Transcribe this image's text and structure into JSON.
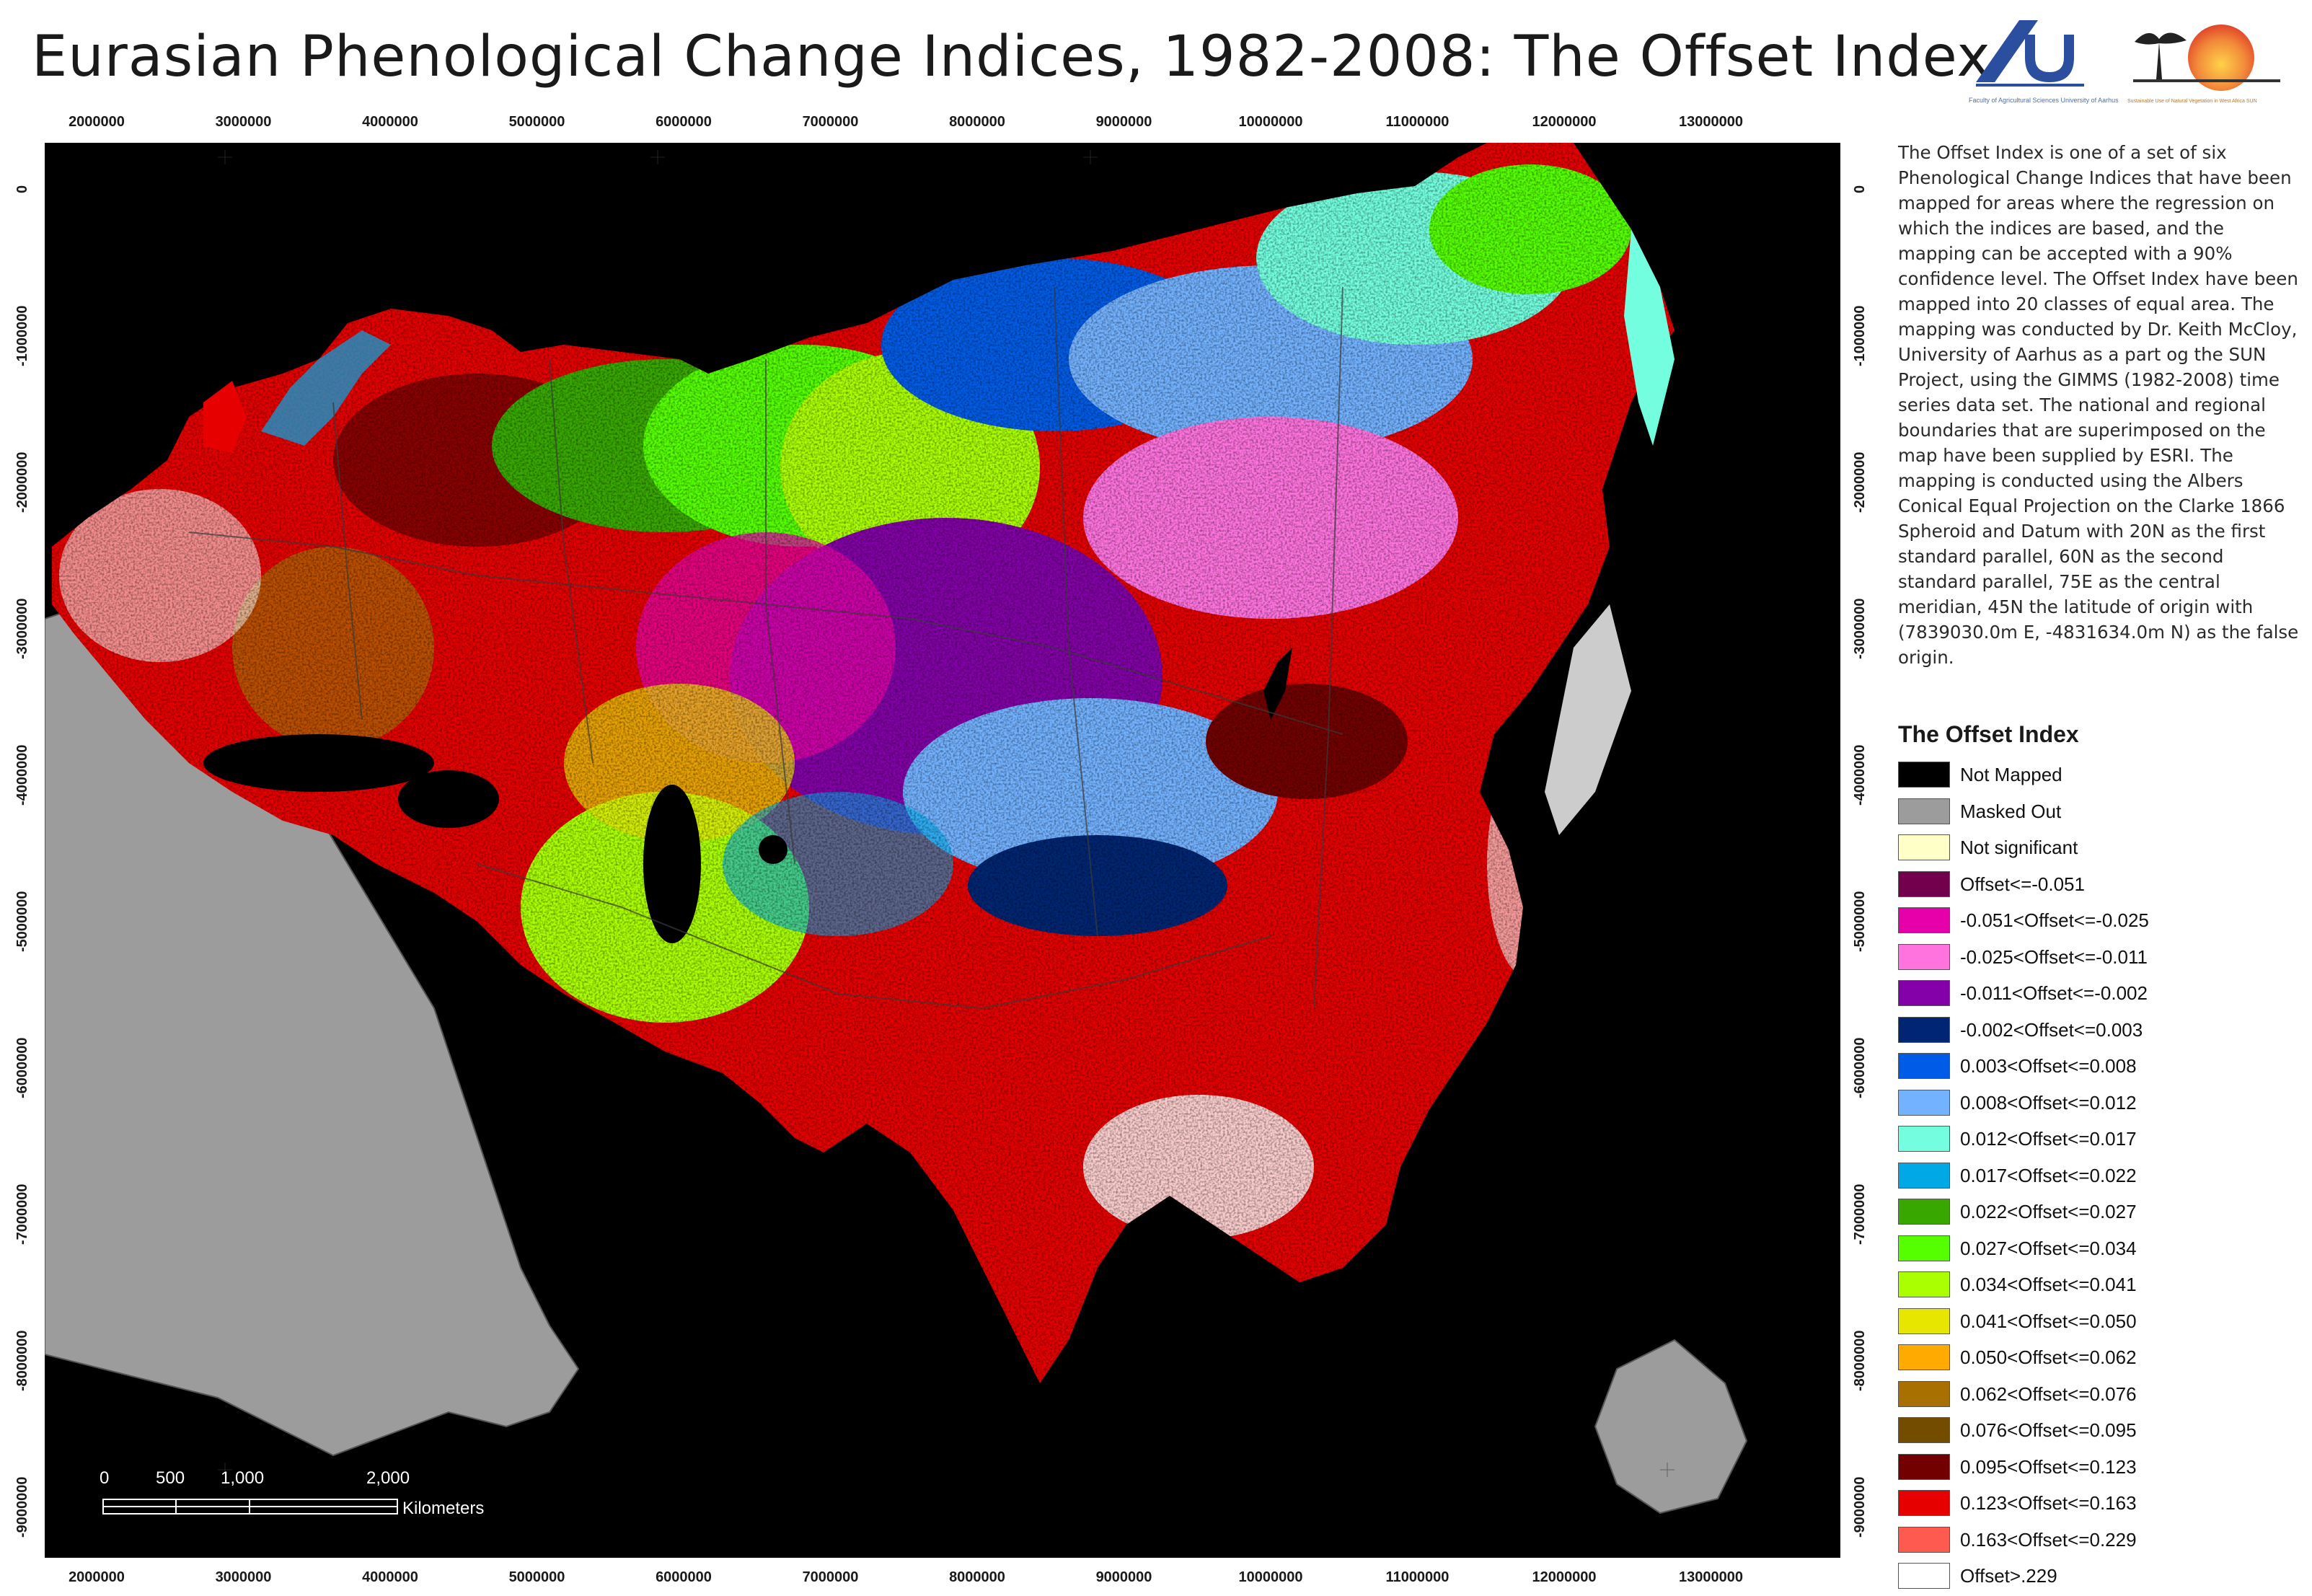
{
  "title": "Eurasian Phenological Change Indices, 1982-2008: The Offset Index",
  "logos": [
    {
      "icon": "aarhus-university-logo",
      "text": "Faculty of Agricultural Sciences University of Aarhus",
      "color": "#2b4f9e"
    },
    {
      "icon": "sun-project-logo",
      "text": "Sustainable Use of Natural Vegetation in West Africa SUN",
      "color": "#e8623a"
    }
  ],
  "x_ticks": [
    "2000000",
    "3000000",
    "4000000",
    "5000000",
    "6000000",
    "7000000",
    "8000000",
    "9000000",
    "10000000",
    "11000000",
    "12000000",
    "13000000"
  ],
  "y_ticks": [
    "0",
    "-1000000",
    "-2000000",
    "-3000000",
    "-4000000",
    "-5000000",
    "-6000000",
    "-7000000",
    "-8000000",
    "-9000000"
  ],
  "scale_bar": {
    "labels": [
      "0",
      "500",
      "1,000",
      "2,000"
    ],
    "unit": "Kilometers"
  },
  "description": "The Offset Index is one of a set of six Phenological Change Indices that have been mapped for areas where the regression on which the indices are based, and the mapping can be accepted with a 90% confidence level. The Offset Index have been mapped into 20 classes of equal area. The mapping was conducted by Dr. Keith McCloy, University of Aarhus as a part og the SUN Project, using the GIMMS (1982-2008) time series data set. The national and regional boundaries that are superimposed on the map have been supplied by ESRI. The mapping is conducted using the Albers Conical Equal Projection on the Clarke 1866 Spheroid and Datum with 20N as the first standard parallel, 60N as the second standard parallel, 75E as the central meridian, 45N the latitude of origin with (7839030.0m E, -4831634.0m N) as the false origin.",
  "legend": {
    "title": "The Offset Index",
    "items": [
      {
        "label": "Not Mapped",
        "color": "#000000"
      },
      {
        "label": "Masked Out",
        "color": "#9c9c9c"
      },
      {
        "label": "Not significant",
        "color": "#ffffc8"
      },
      {
        "label": "Offset<=-0.051",
        "color": "#73004c"
      },
      {
        "label": "-0.051<Offset<=-0.025",
        "color": "#e600a9"
      },
      {
        "label": "-0.025<Offset<=-0.011",
        "color": "#ff73df"
      },
      {
        "label": "-0.011<Offset<=-0.002",
        "color": "#8400a8"
      },
      {
        "label": "-0.002<Offset<=0.003",
        "color": "#002673"
      },
      {
        "label": "0.003<Offset<=0.008",
        "color": "#005ce6"
      },
      {
        "label": "0.008<Offset<=0.012",
        "color": "#73b2ff"
      },
      {
        "label": "0.012<Offset<=0.017",
        "color": "#73ffdf"
      },
      {
        "label": "0.017<Offset<=0.022",
        "color": "#00a9e6"
      },
      {
        "label": "0.022<Offset<=0.027",
        "color": "#38a800"
      },
      {
        "label": "0.027<Offset<=0.034",
        "color": "#55ff00"
      },
      {
        "label": "0.034<Offset<=0.041",
        "color": "#aaff00"
      },
      {
        "label": "0.041<Offset<=0.050",
        "color": "#e6e600"
      },
      {
        "label": "0.050<Offset<=0.062",
        "color": "#ffaa00"
      },
      {
        "label": "0.062<Offset<=0.076",
        "color": "#a87000"
      },
      {
        "label": "0.076<Offset<=0.095",
        "color": "#734c00"
      },
      {
        "label": "0.095<Offset<=0.123",
        "color": "#730000"
      },
      {
        "label": "0.123<Offset<=0.163",
        "color": "#e60000"
      },
      {
        "label": "0.163<Offset<=0.229",
        "color": "#ff5a50"
      },
      {
        "label": "Offset>.229",
        "color": "#ffffff"
      }
    ]
  }
}
